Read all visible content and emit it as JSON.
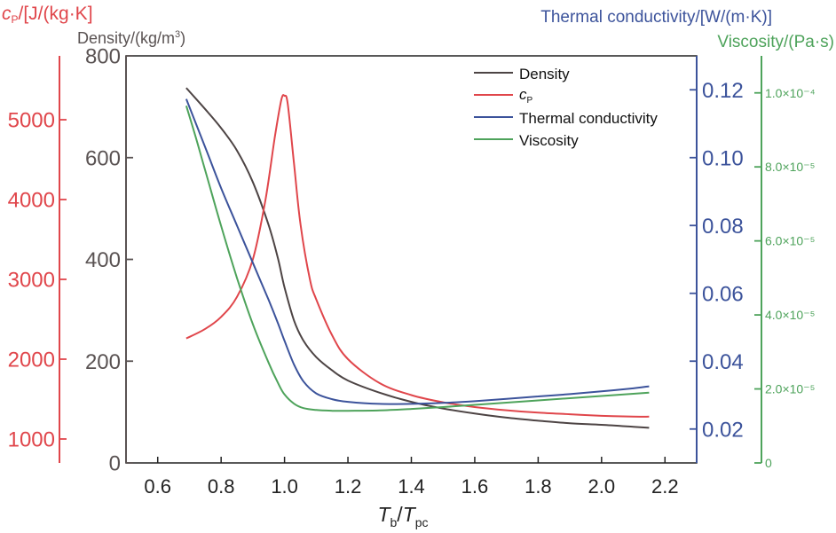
{
  "chart_data": {
    "type": "line",
    "xlabel_main": "T",
    "xlabel_sub1": "b",
    "xlabel_slash": "/",
    "xlabel_sub2": "pc",
    "xlim": [
      0.5,
      2.3
    ],
    "xticks": [
      "0.6",
      "0.8",
      "1.0",
      "1.2",
      "1.4",
      "1.6",
      "1.8",
      "2.0",
      "2.2"
    ],
    "xtick_values": [
      0.6,
      0.8,
      1.0,
      1.2,
      1.4,
      1.6,
      1.8,
      2.0,
      2.2
    ],
    "axes": {
      "cp": {
        "label_main": "c",
        "label_sub": "P",
        "label_rest": "/[J/(kg·K]",
        "ylim": [
          700,
          5800
        ],
        "ticks": [
          "1000",
          "2000",
          "3000",
          "4000",
          "5000"
        ],
        "tick_values": [
          1000,
          2000,
          3000,
          4000,
          5000
        ],
        "color": "#e0464b"
      },
      "density": {
        "label": "Density/(kg/m",
        "label_sup": "3",
        "label_end": ")",
        "ylim": [
          0,
          800
        ],
        "ticks": [
          "0",
          "200",
          "400",
          "600",
          "800"
        ],
        "tick_values": [
          0,
          200,
          400,
          600,
          800
        ],
        "color": "#5a5353"
      },
      "thermal": {
        "label": "Thermal conductivity/[W/(m·K)]",
        "ylim": [
          0.01,
          0.13
        ],
        "ticks": [
          "0.02",
          "0.04",
          "0.06",
          "0.08",
          "0.10",
          "0.12"
        ],
        "tick_values": [
          0.02,
          0.04,
          0.06,
          0.08,
          0.1,
          0.12
        ],
        "color": "#3c539b"
      },
      "viscosity": {
        "label": "Viscosity/(Pa·s)",
        "ylim": [
          0,
          0.00011
        ],
        "ticks": [
          "0",
          "2.0×10⁻⁵",
          "4.0×10⁻⁵",
          "6.0×10⁻⁵",
          "8.0×10⁻⁵",
          "1.0×10⁻⁴"
        ],
        "tick_values": [
          0,
          2e-05,
          4e-05,
          6e-05,
          8e-05,
          0.0001
        ],
        "color": "#4ea35b"
      }
    },
    "legend": [
      {
        "label": "Density",
        "color": "#4d4444"
      },
      {
        "label_main": "c",
        "label_sub": "P",
        "color": "#e0464b"
      },
      {
        "label": "Thermal conductivity",
        "color": "#3c539b"
      },
      {
        "label": "Viscosity",
        "color": "#4ea35b"
      }
    ],
    "legend_position": "top-right",
    "series": [
      {
        "name": "Density",
        "axis": "density",
        "color": "#4d4444",
        "x": [
          0.69,
          0.75,
          0.8,
          0.85,
          0.9,
          0.95,
          0.98,
          1.0,
          1.03,
          1.06,
          1.1,
          1.15,
          1.2,
          1.3,
          1.4,
          1.5,
          1.6,
          1.7,
          1.8,
          1.9,
          2.0,
          2.1,
          2.15
        ],
        "y": [
          737,
          695,
          658,
          614,
          552,
          467,
          400,
          345,
          280,
          240,
          208,
          182,
          162,
          138,
          120,
          107,
          97,
          89,
          83,
          78,
          75,
          71,
          69
        ]
      },
      {
        "name": "cP",
        "axis": "cp",
        "color": "#e0464b",
        "x": [
          0.69,
          0.75,
          0.8,
          0.85,
          0.9,
          0.94,
          0.97,
          0.99,
          1.0,
          1.01,
          1.03,
          1.05,
          1.08,
          1.1,
          1.15,
          1.2,
          1.3,
          1.4,
          1.5,
          1.6,
          1.7,
          1.8,
          1.9,
          2.0,
          2.1,
          2.15
        ],
        "y": [
          2260,
          2380,
          2530,
          2780,
          3250,
          4000,
          4800,
          5250,
          5300,
          5200,
          4450,
          3700,
          3000,
          2750,
          2300,
          2000,
          1700,
          1550,
          1460,
          1400,
          1360,
          1330,
          1310,
          1290,
          1280,
          1280
        ]
      },
      {
        "name": "Thermal conductivity",
        "axis": "thermal",
        "color": "#3c539b",
        "x": [
          0.69,
          0.75,
          0.8,
          0.85,
          0.9,
          0.95,
          0.98,
          1.0,
          1.03,
          1.06,
          1.1,
          1.15,
          1.2,
          1.3,
          1.4,
          1.5,
          1.6,
          1.7,
          1.8,
          1.9,
          2.0,
          2.1,
          2.15
        ],
        "y": [
          0.1173,
          0.103,
          0.091,
          0.08,
          0.069,
          0.058,
          0.051,
          0.046,
          0.039,
          0.034,
          0.0305,
          0.0288,
          0.028,
          0.0274,
          0.0274,
          0.0277,
          0.0282,
          0.0289,
          0.0296,
          0.0303,
          0.0311,
          0.032,
          0.0326
        ]
      },
      {
        "name": "Viscosity",
        "axis": "viscosity",
        "color": "#4ea35b",
        "x": [
          0.69,
          0.72,
          0.75,
          0.8,
          0.85,
          0.9,
          0.95,
          0.98,
          1.0,
          1.03,
          1.06,
          1.1,
          1.15,
          1.2,
          1.3,
          1.4,
          1.5,
          1.6,
          1.7,
          1.8,
          1.9,
          2.0,
          2.1,
          2.15
        ],
        "y": [
          9.65e-05,
          8.8e-05,
          7.9e-05,
          6.4e-05,
          5e-05,
          3.75e-05,
          2.7e-05,
          2.15e-05,
          1.85e-05,
          1.6e-05,
          1.48e-05,
          1.43e-05,
          1.41e-05,
          1.41e-05,
          1.42e-05,
          1.46e-05,
          1.51e-05,
          1.57e-05,
          1.63e-05,
          1.69e-05,
          1.75e-05,
          1.81e-05,
          1.87e-05,
          1.9e-05
        ]
      }
    ]
  }
}
